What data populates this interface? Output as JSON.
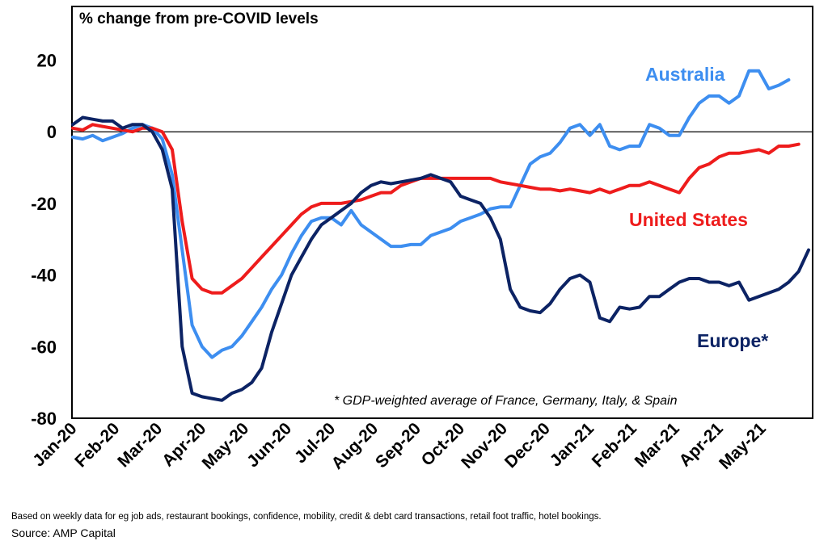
{
  "chart_data": {
    "type": "line",
    "title": "% change from pre-COVID levels",
    "annotation": "* GDP-weighted average of France, Germany, Italy, & Spain",
    "ylim": [
      -80,
      35
    ],
    "yticks": [
      20,
      0,
      -20,
      -40,
      -60,
      -80
    ],
    "xlim": [
      0,
      65
    ],
    "x_tick_labels": [
      "Jan-20",
      "Feb-20",
      "Mar-20",
      "Apr-20",
      "May-20",
      "Jun-20",
      "Jul-20",
      "Aug-20",
      "Sep-20",
      "Oct-20",
      "Nov-20",
      "Dec-20",
      "Jan-21",
      "Feb-21",
      "Mar-21",
      "Apr-21",
      "May-21"
    ],
    "x_tick_weeks": [
      0,
      4.3,
      8.6,
      13,
      17.3,
      21.6,
      26,
      30.3,
      34.6,
      39,
      43.3,
      47.6,
      52,
      56.3,
      60.6,
      65,
      69.3
    ],
    "grid": false,
    "zero_line": true,
    "series": [
      {
        "name": "Australia",
        "color": "#3d8ef0",
        "values": [
          -1.5,
          -2,
          -1,
          -2.5,
          -1.5,
          -0.5,
          1,
          2,
          1,
          -2,
          -12,
          -33,
          -54,
          -60,
          -63,
          -61,
          -60,
          -57,
          -53,
          -49,
          -44,
          -40,
          -34,
          -29,
          -25,
          -24,
          -24,
          -26,
          -22,
          -26,
          -28,
          -30,
          -32,
          -32,
          -31.5,
          -31.5,
          -29,
          -28,
          -27,
          -25,
          -24,
          -23,
          -21.5,
          -21,
          -21,
          -15,
          -9,
          -7,
          -6,
          -3,
          1,
          2,
          -1,
          2,
          -4,
          -5,
          -4,
          -4,
          2,
          1,
          -1,
          -1,
          4,
          8,
          10,
          10,
          8,
          10,
          17,
          17,
          12,
          13,
          14.5
        ]
      },
      {
        "name": "United States",
        "color": "#ee1c1c",
        "values": [
          1,
          0.5,
          2,
          1.5,
          1,
          0.5,
          0,
          1,
          1,
          0,
          -5,
          -25,
          -41,
          -44,
          -45,
          -45,
          -43,
          -41,
          -38,
          -35,
          -32,
          -29,
          -26,
          -23,
          -21,
          -20,
          -20,
          -20,
          -19.5,
          -19,
          -18,
          -17,
          -17,
          -15,
          -14,
          -13,
          -13,
          -13,
          -13,
          -13,
          -13,
          -13,
          -13,
          -14,
          -14.5,
          -15,
          -15.5,
          -16,
          -16,
          -16.5,
          -16,
          -16.5,
          -17,
          -16,
          -17,
          -16,
          -15,
          -15,
          -14,
          -15,
          -16,
          -17,
          -13,
          -10,
          -9,
          -7,
          -6,
          -6,
          -5.5,
          -5,
          -6,
          -4,
          -4,
          -3.5
        ]
      },
      {
        "name": "Europe*",
        "color": "#0c2364",
        "values": [
          2,
          4,
          3.5,
          3,
          3,
          1,
          2,
          2,
          0,
          -5,
          -16,
          -60,
          -73,
          -74,
          -74.5,
          -75,
          -73,
          -72,
          -70,
          -66,
          -56,
          -48,
          -40,
          -35,
          -30,
          -26,
          -24,
          -22,
          -20,
          -17,
          -15,
          -14,
          -14.5,
          -14,
          -13.5,
          -13,
          -12,
          -13,
          -14,
          -18,
          -19,
          -20,
          -24,
          -30,
          -44,
          -49,
          -50,
          -50.5,
          -48,
          -44,
          -41,
          -40,
          -42,
          -52,
          -53,
          -49,
          -49.5,
          -49,
          -46,
          -46,
          -44,
          -42,
          -41,
          -41,
          -42,
          -42,
          -43,
          -42,
          -47,
          -46,
          -45,
          -44,
          -42,
          -39,
          -33
        ]
      }
    ],
    "label_positions": {
      "Australia": "upper-right",
      "United States": "right, below line",
      "Europe*": "lower-right"
    }
  },
  "footer": {
    "note": "Based on weekly data for eg job ads, restaurant bookings, confidence, mobility, credit & debt card transactions, retail foot traffic, hotel bookings.",
    "source": "Source: AMP Capital"
  }
}
